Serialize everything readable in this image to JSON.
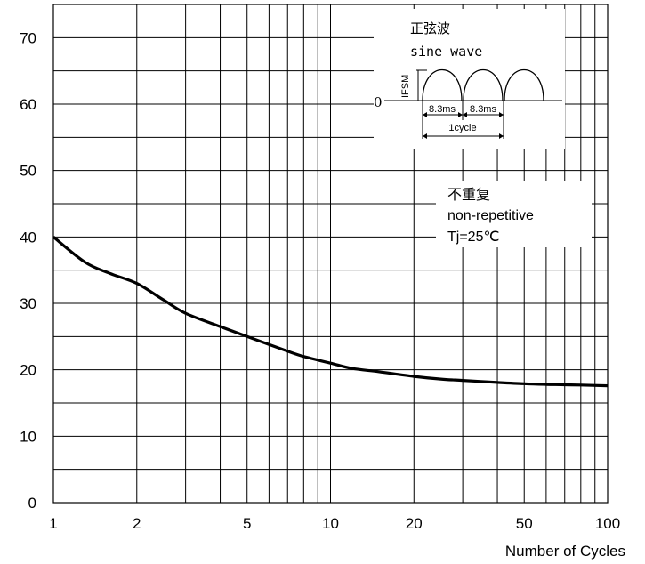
{
  "chart_data": {
    "type": "line",
    "title": "",
    "xlabel": "Number of Cycles",
    "ylabel": "",
    "x_scale": "log",
    "xlim": [
      1,
      100
    ],
    "ylim": [
      0,
      75
    ],
    "x_ticks": [
      1,
      2,
      5,
      10,
      20,
      50,
      100
    ],
    "x_tick_labels": [
      "1",
      "2",
      "5",
      "10",
      "20",
      "50",
      "100"
    ],
    "y_ticks": [
      0,
      10,
      20,
      30,
      40,
      50,
      60,
      70
    ],
    "y_tick_labels": [
      "0",
      "10",
      "20",
      "30",
      "40",
      "50",
      "60",
      "70"
    ],
    "grid": true,
    "series": [
      {
        "x": [
          1,
          1.3,
          1.6,
          2,
          2.5,
          3,
          4,
          5,
          6,
          7,
          8,
          10,
          12,
          15,
          20,
          25,
          30,
          40,
          50,
          60,
          70,
          80,
          100
        ],
        "y": [
          40,
          36.2,
          34.5,
          33.0,
          30.5,
          28.5,
          26.5,
          25.0,
          23.8,
          22.8,
          22.0,
          21.0,
          20.2,
          19.7,
          19.0,
          18.6,
          18.4,
          18.1,
          17.9,
          17.8,
          17.75,
          17.7,
          17.6
        ]
      }
    ],
    "inset": {
      "title_cn": "正弦波",
      "title_en": "sine wave",
      "ylabel": "IFSM",
      "zero_label": "0",
      "period_labels": [
        "8.3ms",
        "8.3ms"
      ],
      "cycle_label": "1cycle"
    },
    "annotation": {
      "line1": "不重复",
      "line2": "non-repetitive",
      "line3": "Tj=25℃"
    },
    "colors": {
      "line": "#000000",
      "grid": "#000000",
      "background": "#ffffff"
    }
  }
}
